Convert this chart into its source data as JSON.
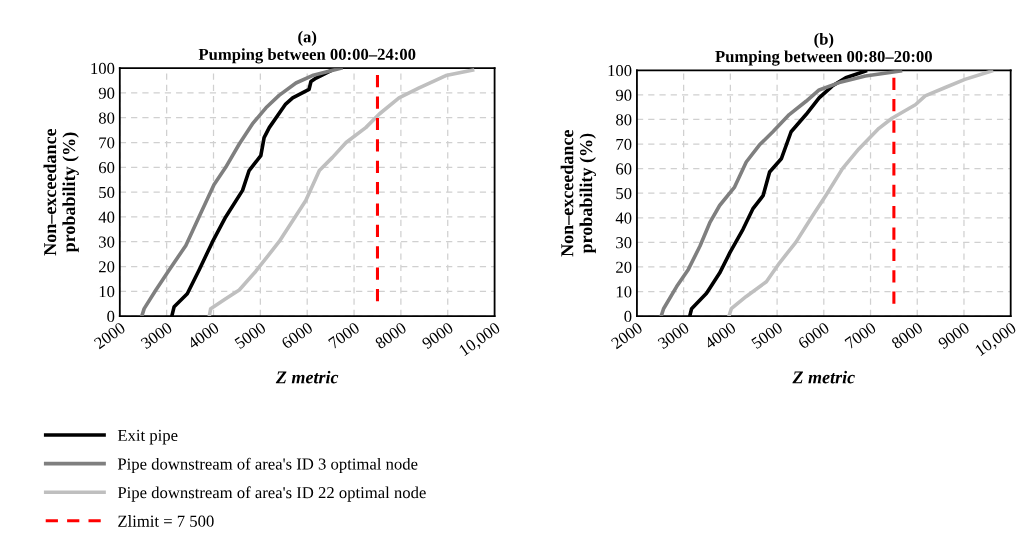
{
  "chart_data": [
    {
      "type": "line",
      "title": "(a)\nPumping between 00:00–24:00",
      "xlabel": "Z metric",
      "ylabel": "Non–exceedance\nprobability (%)",
      "xlim": [
        2000,
        10000
      ],
      "xticks": [
        2000,
        3000,
        4000,
        5000,
        6000,
        7000,
        8000,
        9000,
        {
          "value": 10000,
          "label": "10,000"
        }
      ],
      "ylim": [
        0,
        100
      ],
      "yticks": [
        0,
        10,
        20,
        30,
        40,
        50,
        60,
        70,
        80,
        90,
        100
      ],
      "grid": true,
      "legend": "bottom",
      "series": [
        {
          "name": "Exit pipe",
          "color": "#000000",
          "x": [
            3110,
            3160,
            3440,
            3690,
            3980,
            4260,
            4620,
            4760,
            5010,
            5080,
            5190,
            5540,
            5690,
            6040,
            6080,
            6190,
            6610
          ],
          "values": [
            0,
            3.8,
            9,
            18.5,
            30,
            40,
            50.7,
            58.7,
            64.7,
            72,
            76,
            85.5,
            88,
            91.4,
            94.6,
            96,
            100
          ]
        },
        {
          "name": "Pipe downstream of area's ID 3 optimal node",
          "color": "#7f7f7f",
          "x": [
            2470,
            2520,
            2770,
            3050,
            3410,
            3690,
            4010,
            4260,
            4550,
            4830,
            5120,
            5400,
            5760,
            6110,
            6720
          ],
          "values": [
            0,
            3,
            10.5,
            18.5,
            28.5,
            40,
            53,
            60,
            69.4,
            77.5,
            84,
            89,
            94,
            97,
            100
          ]
        },
        {
          "name": "Pipe downstream of area's ID 22 optimal node",
          "color": "#bfbfbf",
          "x": [
            3910,
            3940,
            4260,
            4550,
            4900,
            5400,
            5970,
            6260,
            6540,
            6830,
            7250,
            7540,
            7960,
            8390,
            8960,
            9530
          ],
          "values": [
            0,
            3,
            7,
            10.5,
            18,
            30,
            46.6,
            58.7,
            64,
            70,
            76,
            81.5,
            88,
            92,
            97,
            99.2
          ]
        },
        {
          "name": "Zlimit = 7 500",
          "color": "#ff0000",
          "line_style": "dashed",
          "x": [
            7500,
            7500
          ],
          "values": [
            6,
            100
          ]
        }
      ]
    },
    {
      "type": "line",
      "title": "(b)\nPumping between 00:80–20:00",
      "xlabel": "Z metric",
      "ylabel": "Non–exceedance\nprobability (%)",
      "xlim": [
        2000,
        10000
      ],
      "xticks": [
        2000,
        3000,
        4000,
        5000,
        6000,
        7000,
        8000,
        9000,
        {
          "value": 10000,
          "label": "10,000"
        }
      ],
      "ylim": [
        0,
        100
      ],
      "yticks": [
        0,
        10,
        20,
        30,
        40,
        50,
        60,
        70,
        80,
        90,
        100
      ],
      "grid": true,
      "series": [
        {
          "color": "#000000",
          "x": [
            3130,
            3170,
            3490,
            3770,
            3990,
            4270,
            4480,
            4700,
            4840,
            5090,
            5300,
            5620,
            5900,
            6180,
            6470,
            6890
          ],
          "values": [
            0,
            3,
            9.3,
            17.5,
            25.8,
            35.3,
            43.6,
            49,
            58.6,
            64,
            75,
            82,
            88.8,
            93.6,
            97,
            99.7
          ]
        },
        {
          "color": "#7f7f7f",
          "x": [
            2520,
            2570,
            2850,
            3100,
            3350,
            3560,
            3770,
            4090,
            4340,
            4620,
            4910,
            5260,
            5620,
            5900,
            6330,
            6890,
            7640
          ],
          "values": [
            0,
            3,
            12,
            19,
            28.5,
            38,
            45,
            52.5,
            62.7,
            69.6,
            75,
            82,
            87.4,
            92,
            95,
            97.7,
            99.7
          ]
        },
        {
          "color": "#bfbfbf",
          "x": [
            3970,
            4020,
            4340,
            4770,
            5050,
            5400,
            5760,
            6040,
            6400,
            6750,
            7180,
            7460,
            7960,
            8170,
            8600,
            9020,
            9590
          ],
          "values": [
            0,
            3,
            8,
            14,
            21.6,
            30,
            40.8,
            49,
            60,
            68,
            76.4,
            80.5,
            86,
            89.6,
            93,
            96.3,
            99.7
          ]
        },
        {
          "color": "#ff0000",
          "line_style": "dashed",
          "x": [
            7500,
            7500
          ],
          "values": [
            5,
            100
          ]
        }
      ]
    }
  ]
}
